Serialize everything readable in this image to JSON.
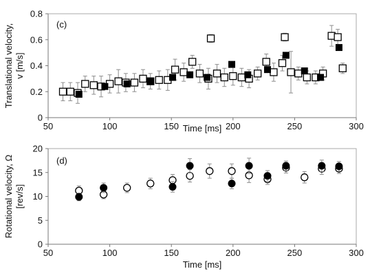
{
  "colors": {
    "axis": "#777777",
    "frame": "#aaaaaa",
    "marker": "#000000",
    "errorbar": "#8c8c8c",
    "background": "#ffffff"
  },
  "chart_data": [
    {
      "type": "scatter",
      "panel_label": "(c)",
      "title": "",
      "xlabel": "Time [ms]",
      "ylabel": [
        "Translational velocity,",
        "v [m/s]"
      ],
      "xlim": [
        50,
        300
      ],
      "ylim": [
        0,
        0.8
      ],
      "xticks": [
        "50",
        "100",
        "150",
        "200",
        "250",
        "300"
      ],
      "yticks": [
        "0",
        "0.2",
        "0.4",
        "0.6",
        "0.8"
      ],
      "grid": false,
      "series": [
        {
          "marker": "open-square",
          "points": [
            {
              "x": 62,
              "y": 0.2,
              "err": 0.07
            },
            {
              "x": 68,
              "y": 0.2,
              "err": 0.07
            },
            {
              "x": 74,
              "y": 0.19,
              "err": 0.08
            },
            {
              "x": 80,
              "y": 0.26,
              "err": 0.06
            },
            {
              "x": 87,
              "y": 0.25,
              "err": 0.07
            },
            {
              "x": 93,
              "y": 0.24,
              "err": 0.08
            },
            {
              "x": 100,
              "y": 0.26,
              "err": 0.07
            },
            {
              "x": 107,
              "y": 0.28,
              "err": 0.09
            },
            {
              "x": 113,
              "y": 0.27,
              "err": 0.07
            },
            {
              "x": 120,
              "y": 0.27,
              "err": 0.07
            },
            {
              "x": 127,
              "y": 0.3,
              "err": 0.07
            },
            {
              "x": 133,
              "y": 0.28,
              "err": 0.06
            },
            {
              "x": 140,
              "y": 0.29,
              "err": 0.07
            },
            {
              "x": 147,
              "y": 0.29,
              "err": 0.08
            },
            {
              "x": 153,
              "y": 0.37,
              "err": 0.08
            },
            {
              "x": 160,
              "y": 0.35,
              "err": 0.07
            },
            {
              "x": 167,
              "y": 0.43,
              "err": 0.05
            },
            {
              "x": 173,
              "y": 0.34,
              "err": 0.07
            },
            {
              "x": 180,
              "y": 0.3,
              "err": 0.08
            },
            {
              "x": 182,
              "y": 0.61,
              "err": 0.03
            },
            {
              "x": 187,
              "y": 0.34,
              "err": 0.07
            },
            {
              "x": 193,
              "y": 0.31,
              "err": 0.07
            },
            {
              "x": 200,
              "y": 0.32,
              "err": 0.07
            },
            {
              "x": 207,
              "y": 0.31,
              "err": 0.07
            },
            {
              "x": 213,
              "y": 0.3,
              "err": 0.07
            },
            {
              "x": 220,
              "y": 0.34,
              "err": 0.05
            },
            {
              "x": 227,
              "y": 0.43,
              "err": 0.06
            },
            {
              "x": 233,
              "y": 0.35,
              "err": 0.07
            },
            {
              "x": 240,
              "y": 0.42,
              "err": 0.06
            },
            {
              "x": 242,
              "y": 0.62,
              "err": 0.03
            },
            {
              "x": 247,
              "y": 0.35,
              "err": 0.16
            },
            {
              "x": 253,
              "y": 0.34,
              "err": 0.05
            },
            {
              "x": 260,
              "y": 0.31,
              "err": 0.05
            },
            {
              "x": 267,
              "y": 0.31,
              "err": 0.05
            },
            {
              "x": 273,
              "y": 0.34,
              "err": 0.05
            },
            {
              "x": 280,
              "y": 0.63,
              "err": 0.08
            },
            {
              "x": 285,
              "y": 0.62,
              "err": 0.06
            },
            {
              "x": 289,
              "y": 0.38,
              "err": 0.04
            }
          ]
        },
        {
          "marker": "filled-square",
          "points": [
            {
              "x": 75,
              "y": 0.18
            },
            {
              "x": 96,
              "y": 0.24
            },
            {
              "x": 114,
              "y": 0.26
            },
            {
              "x": 133,
              "y": 0.28
            },
            {
              "x": 151,
              "y": 0.31
            },
            {
              "x": 165,
              "y": 0.33
            },
            {
              "x": 179,
              "y": 0.31
            },
            {
              "x": 199,
              "y": 0.41
            },
            {
              "x": 212,
              "y": 0.33
            },
            {
              "x": 228,
              "y": 0.37
            },
            {
              "x": 243,
              "y": 0.48
            },
            {
              "x": 258,
              "y": 0.36
            },
            {
              "x": 271,
              "y": 0.31
            },
            {
              "x": 286,
              "y": 0.54
            }
          ]
        }
      ]
    },
    {
      "type": "scatter",
      "panel_label": "(d)",
      "title": "",
      "xlabel": "Time [ms]",
      "ylabel": [
        "Rotational velocity, Ω",
        "[rev/s]"
      ],
      "xlim": [
        50,
        300
      ],
      "ylim": [
        0,
        20
      ],
      "xticks": [
        "50",
        "100",
        "150",
        "200",
        "250",
        "300"
      ],
      "yticks": [
        "0",
        "5",
        "10",
        "15",
        "20"
      ],
      "grid": false,
      "series": [
        {
          "marker": "open-circle",
          "points": [
            {
              "x": 75,
              "y": 11.2,
              "err": 1.0
            },
            {
              "x": 95,
              "y": 10.4,
              "err": 0.9
            },
            {
              "x": 114,
              "y": 11.8,
              "err": 1.0
            },
            {
              "x": 133,
              "y": 12.7,
              "err": 1.1
            },
            {
              "x": 151,
              "y": 13.4,
              "err": 1.2
            },
            {
              "x": 165,
              "y": 14.3,
              "err": 1.3
            },
            {
              "x": 181,
              "y": 15.3,
              "err": 1.5
            },
            {
              "x": 199,
              "y": 15.3,
              "err": 1.5
            },
            {
              "x": 213,
              "y": 14.4,
              "err": 1.5
            },
            {
              "x": 228,
              "y": 13.6,
              "err": 1.1
            },
            {
              "x": 243,
              "y": 16.0,
              "err": 1.1
            },
            {
              "x": 258,
              "y": 14.0,
              "err": 1.2
            },
            {
              "x": 272,
              "y": 15.8,
              "err": 1.2
            },
            {
              "x": 286,
              "y": 15.8,
              "err": 1.0
            }
          ]
        },
        {
          "marker": "filled-circle",
          "points": [
            {
              "x": 75,
              "y": 9.9,
              "err": 0.8
            },
            {
              "x": 95,
              "y": 11.8,
              "err": 1.0
            },
            {
              "x": 151,
              "y": 12.0,
              "err": 1.1
            },
            {
              "x": 165,
              "y": 16.4,
              "err": 1.5
            },
            {
              "x": 199,
              "y": 12.7,
              "err": 1.1
            },
            {
              "x": 213,
              "y": 16.4,
              "err": 1.6
            },
            {
              "x": 228,
              "y": 14.3,
              "err": 1.1
            },
            {
              "x": 243,
              "y": 16.4,
              "err": 1.0
            },
            {
              "x": 272,
              "y": 16.4,
              "err": 1.2
            },
            {
              "x": 286,
              "y": 16.3,
              "err": 1.0
            }
          ]
        }
      ]
    }
  ]
}
